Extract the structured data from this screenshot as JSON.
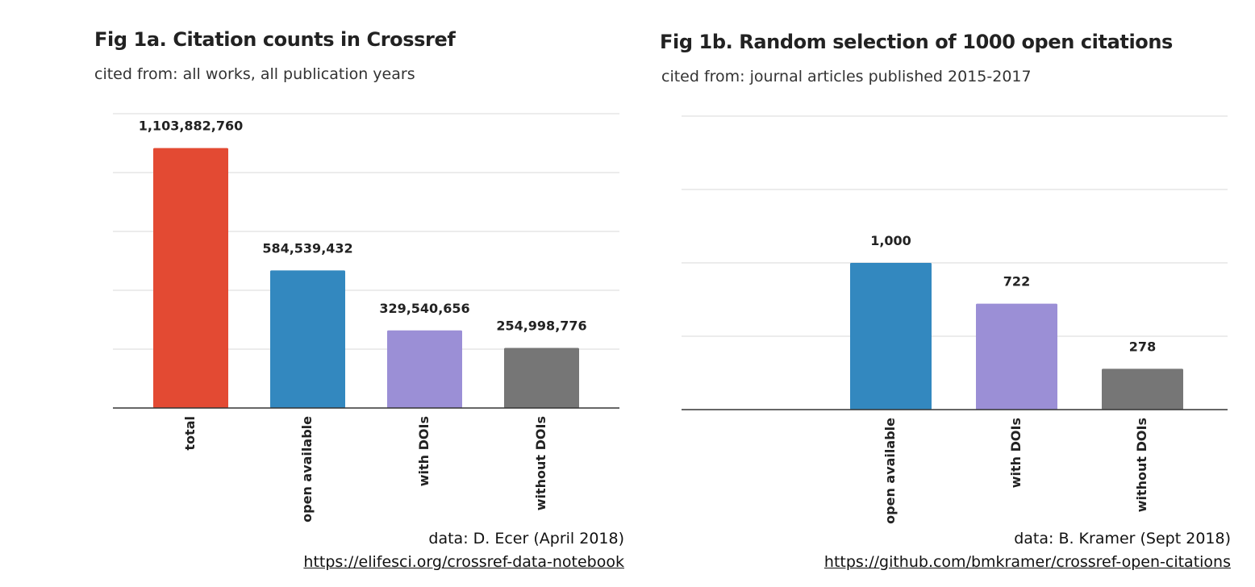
{
  "chart_data": [
    {
      "type": "bar",
      "title": "Fig 1a. Citation counts in Crossref",
      "subtitle": "cited from: all works, all publication years",
      "categories": [
        "total",
        "open available",
        "with DOIs",
        "without DOIs"
      ],
      "values": [
        1103882760,
        584539432,
        329540656,
        254998776
      ],
      "value_labels": [
        "1,103,882,760",
        "584,539,432",
        "329,540,656",
        "254,998,776"
      ],
      "colors": [
        "#e34a33",
        "#3388bf",
        "#9b8fd6",
        "#767676"
      ],
      "ylim": [
        0,
        1250000000
      ],
      "gridlines": 5,
      "grid": true,
      "legend": "none",
      "credit": "data: D. Ecer (April 2018)",
      "link": "https://elifesci.org/crossref-data-notebook"
    },
    {
      "type": "bar",
      "title": "Fig 1b. Random selection of 1000 open citations",
      "subtitle": "cited from: journal articles published 2015-2017",
      "categories": [
        "open available",
        "with DOIs",
        "without DOIs"
      ],
      "values": [
        1000,
        722,
        278
      ],
      "value_labels": [
        "1,000",
        "722",
        "278"
      ],
      "colors": [
        "#3388bf",
        "#9b8fd6",
        "#767676"
      ],
      "ylim": [
        0,
        2000
      ],
      "gridlines": 4,
      "grid": true,
      "legend": "none",
      "credit": "data: B. Kramer (Sept 2018)",
      "link": "https://github.com/bmkramer/crossref-open-citations"
    }
  ]
}
